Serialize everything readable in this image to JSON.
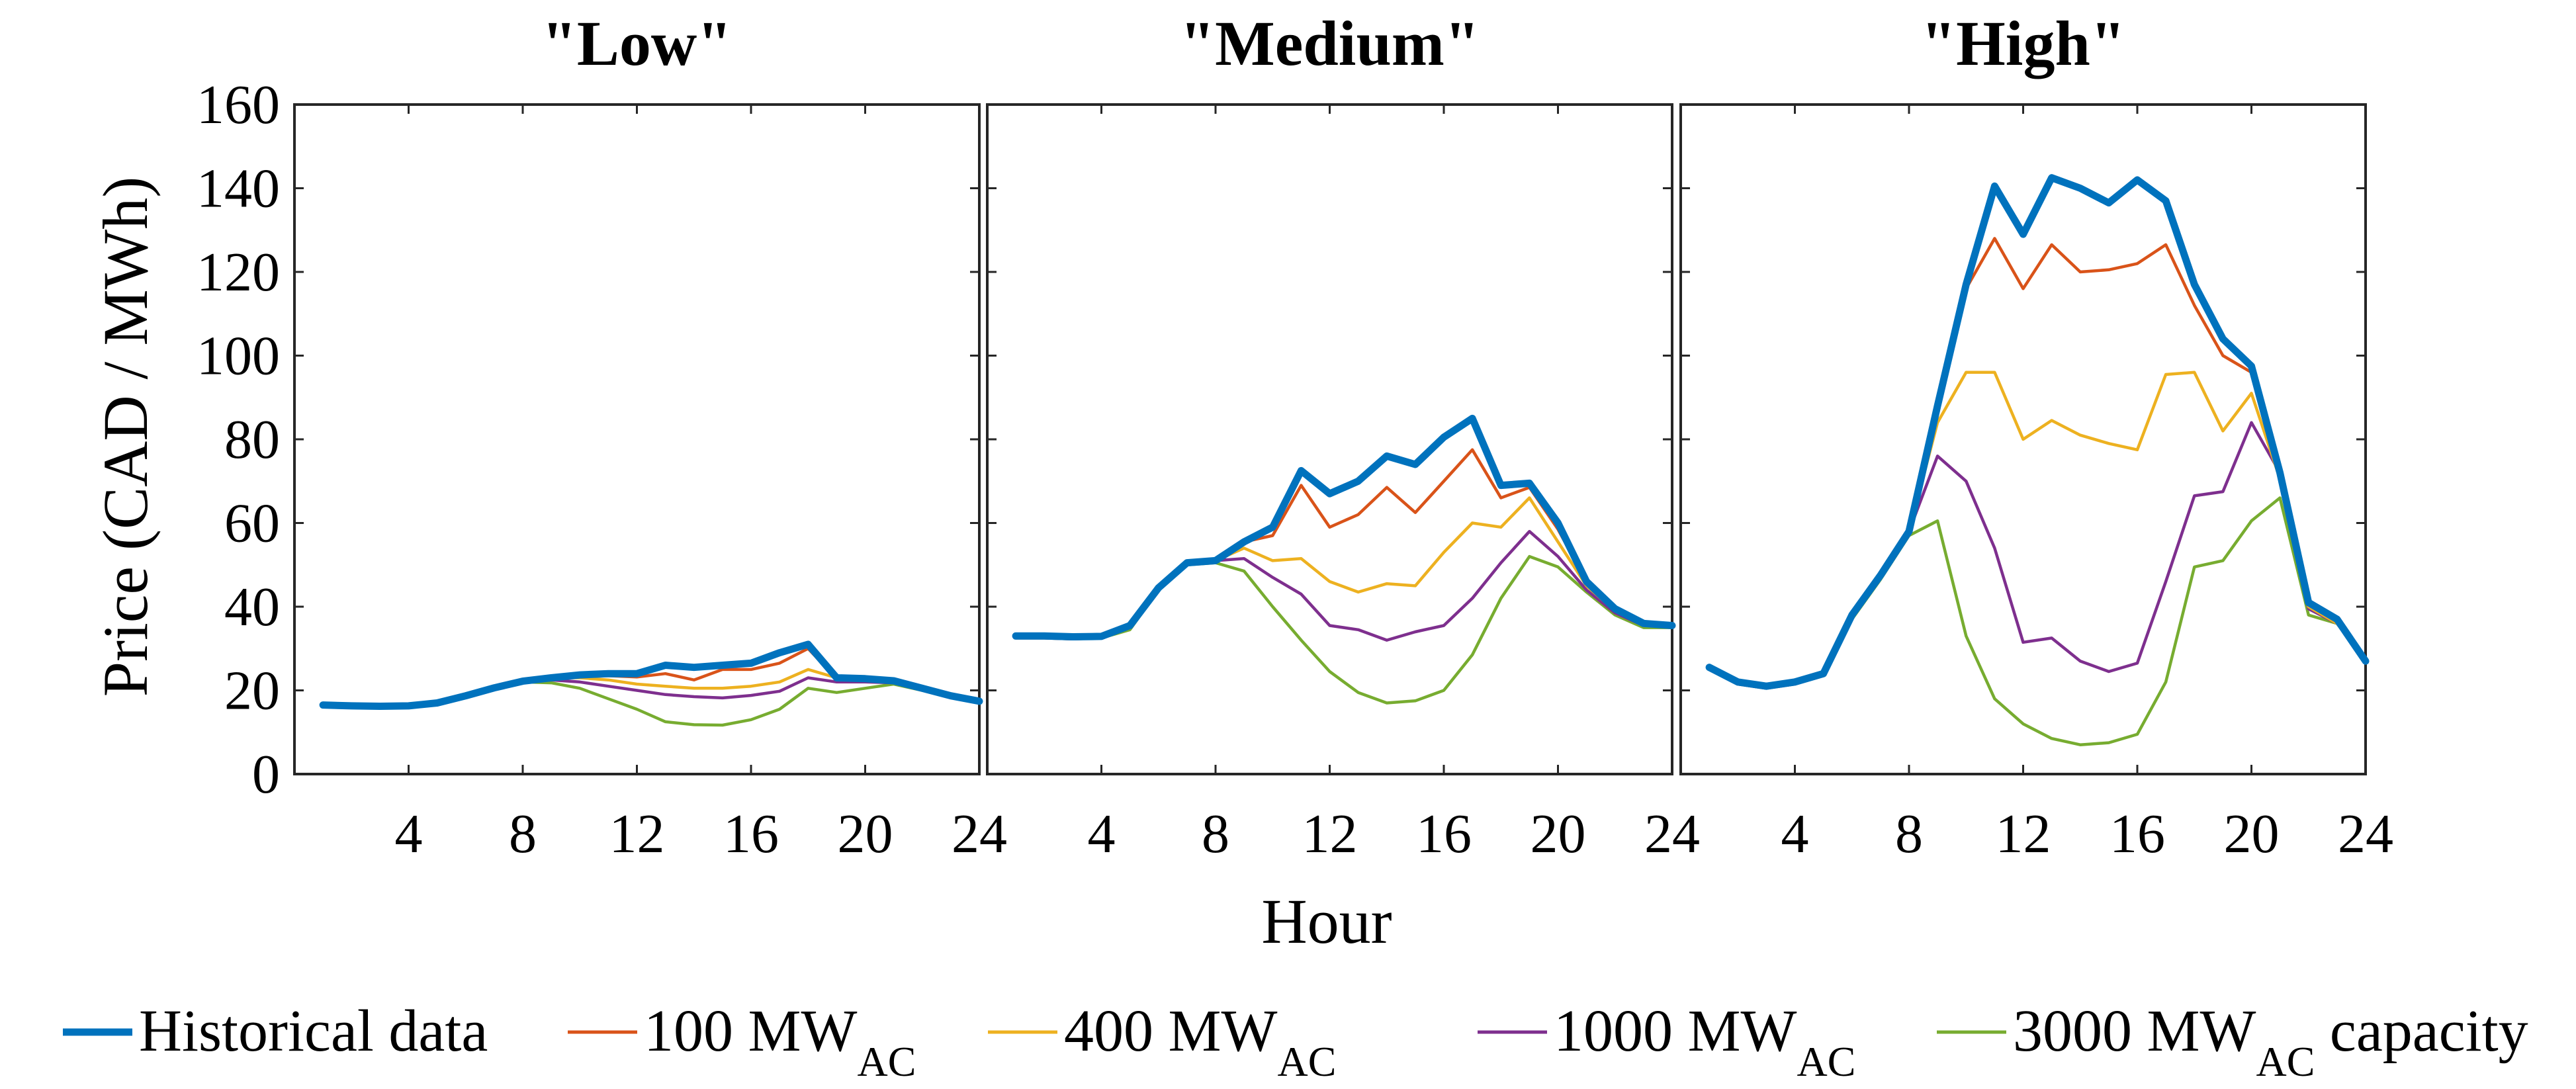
{
  "chart_data": {
    "type": "line",
    "ylabel": "Price (CAD / MWh)",
    "xlabel": "Hour",
    "ylim": [
      0,
      160
    ],
    "yticks": [
      0,
      20,
      40,
      60,
      80,
      100,
      120,
      140,
      160
    ],
    "xlim": [
      0,
      24
    ],
    "xticks": [
      4,
      8,
      12,
      16,
      20,
      24
    ],
    "hours": [
      1,
      2,
      3,
      4,
      5,
      6,
      7,
      8,
      9,
      10,
      11,
      12,
      13,
      14,
      15,
      16,
      17,
      18,
      19,
      20,
      21,
      22,
      23,
      24
    ],
    "series_styles": [
      {
        "name": "Historical data",
        "color": "#0072BD",
        "emphasis": "thick"
      },
      {
        "name": "100 MW_AC",
        "color": "#D95319",
        "emphasis": "thin"
      },
      {
        "name": "400 MW_AC",
        "color": "#EDB120",
        "emphasis": "thin"
      },
      {
        "name": "1000 MW_AC",
        "color": "#7E2F8E",
        "emphasis": "thin"
      },
      {
        "name": "3000 MW_AC",
        "color": "#77AC30",
        "emphasis": "thin"
      }
    ],
    "panels": [
      {
        "title": "\"Low\"",
        "series": [
          {
            "name": "Historical data",
            "values": [
              16.5,
              16.3,
              16.2,
              16.3,
              17,
              18.7,
              20.6,
              22.2,
              23,
              23.7,
              24,
              24,
              26,
              25.5,
              26,
              26.5,
              29,
              31,
              23,
              22.8,
              22.3,
              20.5,
              18.7,
              17.4
            ]
          },
          {
            "name": "100 MW_AC",
            "values": [
              16.5,
              16.3,
              16.2,
              16.3,
              17,
              18.7,
              20.6,
              22.2,
              23,
              23.5,
              23.5,
              23.2,
              24,
              22.5,
              25,
              25,
              26.5,
              30,
              22.8,
              22.8,
              22.3,
              20.5,
              18.7,
              17.4
            ]
          },
          {
            "name": "400 MW_AC",
            "values": [
              16.5,
              16.3,
              16.2,
              16.3,
              17,
              18.7,
              20.6,
              22.2,
              23,
              23,
              22.5,
              21.5,
              21,
              20.5,
              20.5,
              21,
              22,
              25,
              23,
              22.5,
              22,
              20.5,
              18.7,
              17.4
            ]
          },
          {
            "name": "1000 MW_AC",
            "values": [
              16.5,
              16.3,
              16.2,
              16.3,
              17,
              18.7,
              20.6,
              22.2,
              22.5,
              22,
              21,
              20,
              19,
              18.5,
              18.2,
              18.8,
              19.8,
              23,
              22,
              22,
              21.8,
              20.5,
              18.7,
              17.4
            ]
          },
          {
            "name": "3000 MW_AC",
            "values": [
              16.5,
              16.3,
              16.2,
              16.3,
              17,
              18.5,
              20.5,
              22,
              21.8,
              20.5,
              18,
              15.5,
              12.5,
              11.8,
              11.7,
              13,
              15.5,
              20.5,
              19.5,
              20.5,
              21.5,
              20,
              18.5,
              17.2
            ]
          }
        ]
      },
      {
        "title": "\"Medium\"",
        "series": [
          {
            "name": "Historical data",
            "values": [
              33,
              33,
              32.8,
              32.9,
              35.5,
              44.5,
              50.5,
              51,
              55.5,
              59,
              72.5,
              67,
              70,
              76,
              74,
              80.5,
              85,
              69,
              69.5,
              60,
              46,
              39.5,
              36,
              35.5
            ]
          },
          {
            "name": "100 MW_AC",
            "values": [
              33,
              33,
              32.8,
              32.9,
              35.5,
              44.5,
              50.5,
              51,
              55.5,
              57,
              69,
              59,
              62,
              68.5,
              62.5,
              70,
              77.5,
              66,
              68.5,
              58.5,
              46,
              39.5,
              36,
              35.5
            ]
          },
          {
            "name": "400 MW_AC",
            "values": [
              33,
              33,
              32.8,
              32.9,
              35.5,
              44.5,
              50.5,
              51,
              54,
              51,
              51.5,
              46,
              43.5,
              45.5,
              45,
              53,
              60,
              59,
              66,
              55.5,
              45,
              39,
              35.5,
              35.5
            ]
          },
          {
            "name": "1000 MW_AC",
            "values": [
              32.5,
              32.5,
              32.3,
              32.5,
              35,
              44,
              50,
              51,
              51.5,
              47,
              43,
              35.5,
              34.5,
              32,
              34,
              35.5,
              42,
              50.5,
              58,
              52,
              44,
              38.5,
              35.5,
              35.5
            ]
          },
          {
            "name": "3000 MW_AC",
            "values": [
              32.5,
              32.5,
              32.3,
              32.5,
              34.5,
              44,
              50,
              50.5,
              48.5,
              40,
              32,
              24.5,
              19.5,
              17,
              17.5,
              20,
              28.5,
              42,
              52,
              49.5,
              43.5,
              38,
              35,
              35
            ]
          }
        ]
      },
      {
        "title": "\"High\"",
        "series": [
          {
            "name": "Historical data",
            "values": [
              25.5,
              22,
              21,
              22,
              24,
              38,
              47.5,
              58,
              88,
              117,
              140.5,
              129,
              142.5,
              140,
              136.5,
              142,
              137,
              117,
              104,
              97.5,
              72,
              41,
              37,
              27
            ]
          },
          {
            "name": "100 MW_AC",
            "values": [
              25.5,
              22,
              21,
              22,
              24,
              38,
              47.5,
              58,
              86,
              116,
              128,
              116,
              126.5,
              120,
              120.5,
              122,
              126.5,
              112,
              100,
              96,
              72,
              41,
              37,
              27
            ]
          },
          {
            "name": "400 MW_AC",
            "values": [
              25.5,
              22,
              21,
              22,
              24,
              38,
              47.5,
              58,
              84,
              96,
              96,
              80,
              84.5,
              81,
              79,
              77.5,
              95.5,
              96,
              82,
              91,
              70.5,
              40,
              36,
              27
            ]
          },
          {
            "name": "1000 MW_AC",
            "values": [
              25,
              21.5,
              20.5,
              21.5,
              23.5,
              37.5,
              47,
              58,
              76,
              70,
              54,
              31.5,
              32.5,
              27,
              24.5,
              26.5,
              46,
              66.5,
              67.5,
              84,
              72,
              39.5,
              36,
              27
            ]
          },
          {
            "name": "3000 MW_AC",
            "values": [
              25,
              21.5,
              20.5,
              21.5,
              23.5,
              37,
              46.5,
              57,
              60.5,
              33,
              18,
              12,
              8.5,
              7,
              7.5,
              9.5,
              22,
              49.5,
              51,
              60.5,
              66,
              38,
              36,
              27
            ]
          }
        ]
      }
    ],
    "legend": {
      "placement": "bottom",
      "entries": [
        {
          "name": "Historical data",
          "label": "Historical data",
          "sub": "",
          "suffix": ""
        },
        {
          "name": "100 MW_AC",
          "label": "100 MW",
          "sub": "AC",
          "suffix": ""
        },
        {
          "name": "400 MW_AC",
          "label": "400 MW",
          "sub": "AC",
          "suffix": ""
        },
        {
          "name": "1000 MW_AC",
          "label": "1000 MW",
          "sub": "AC",
          "suffix": ""
        },
        {
          "name": "3000 MW_AC",
          "label": "3000 MW",
          "sub": "AC",
          "suffix": "capacity"
        }
      ]
    }
  }
}
